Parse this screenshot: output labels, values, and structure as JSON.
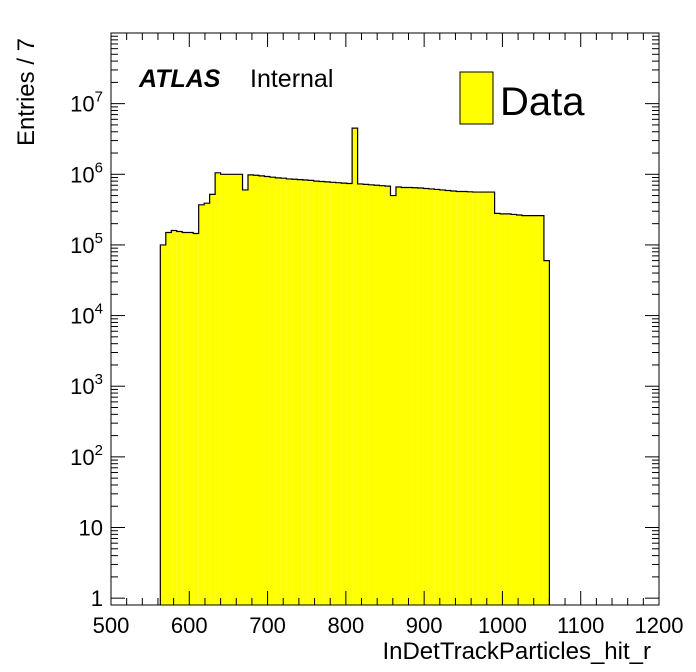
{
  "chart_data": {
    "type": "bar",
    "subtype": "histogram",
    "xlabel": "InDetTrackParticles_hit_r",
    "ylabel": "Entries / 7",
    "xlim": [
      500,
      1200
    ],
    "ylim": [
      0.8,
      100000000
    ],
    "yscale": "log",
    "x_ticks": [
      "500",
      "600",
      "700",
      "800",
      "900",
      "1000",
      "1100",
      "1200"
    ],
    "y_ticks": [
      {
        "base": "1",
        "exp": ""
      },
      {
        "base": "10",
        "exp": ""
      },
      {
        "base": "10",
        "exp": "2"
      },
      {
        "base": "10",
        "exp": "3"
      },
      {
        "base": "10",
        "exp": "4"
      },
      {
        "base": "10",
        "exp": "5"
      },
      {
        "base": "10",
        "exp": "6"
      },
      {
        "base": "10",
        "exp": "7"
      }
    ],
    "bin_width": 7,
    "bin_edges_start": 563,
    "fill_color": "#ffff00",
    "line_color": "#000000",
    "grid": false,
    "legend_position": "top-right",
    "series": [
      {
        "name": "Data",
        "values": [
          100000,
          150000,
          160000,
          155000,
          150000,
          150000,
          145000,
          370000,
          390000,
          520000,
          1050000,
          1000000,
          1000000,
          1000000,
          1000000,
          600000,
          980000,
          970000,
          950000,
          930000,
          910000,
          890000,
          880000,
          860000,
          850000,
          840000,
          830000,
          820000,
          800000,
          790000,
          780000,
          770000,
          760000,
          750000,
          740000,
          4500000,
          730000,
          720000,
          710000,
          700000,
          690000,
          680000,
          500000,
          660000,
          650000,
          650000,
          645000,
          640000,
          630000,
          620000,
          610000,
          600000,
          590000,
          580000,
          570000,
          570000,
          565000,
          560000,
          560000,
          560000,
          560000,
          280000,
          275000,
          275000,
          270000,
          265000,
          260000,
          260000,
          260000,
          260000,
          60000
        ]
      }
    ],
    "annotations": {
      "atlas": "ATLAS",
      "label": "Internal"
    }
  }
}
